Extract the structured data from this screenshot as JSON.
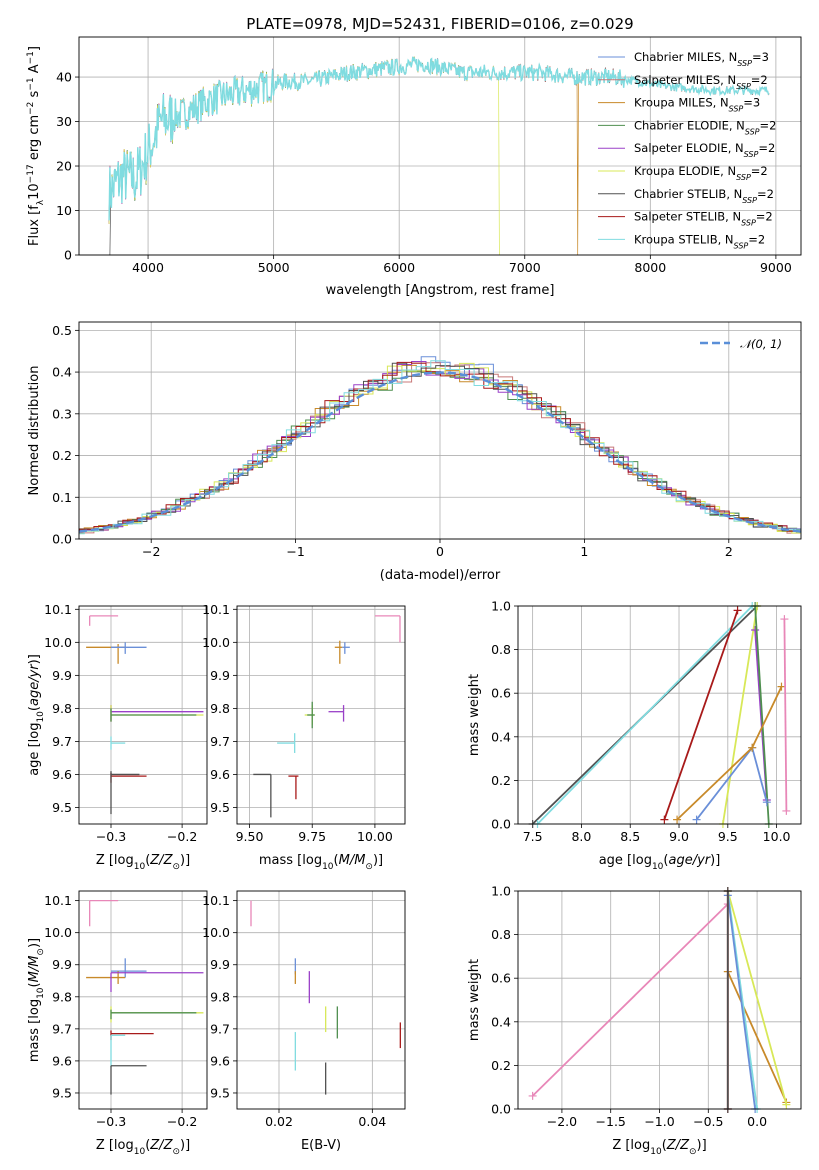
{
  "title": "PLATE=0978, MJD=52431, FIBERID=0106, z=0.029",
  "colors": {
    "Chabrier MILES": "#6a8fd8",
    "Salpeter MILES": "#c87878",
    "Kroupa MILES": "#c88a2a",
    "Chabrier ELODIE": "#4f8f4f",
    "Salpeter ELODIE": "#9a40c8",
    "Kroupa ELODIE": "#d8e858",
    "Chabrier STELIB": "#505050",
    "Salpeter STELIB": "#a81a1a",
    "Kroupa STELIB": "#80dce0",
    "gauss": "#5a8fd8",
    "pink": "#e887b8",
    "orange": "#e07a30",
    "purple": "#9a40c8",
    "lime": "#c8e850"
  },
  "chart_data": [
    {
      "id": "spectrum",
      "type": "line",
      "xlabel": "wavelength [Angstrom, rest frame]",
      "ylabel": "Flux [f_λ10^-17 erg cm^-2 s^-1 A^-1]",
      "xlim": [
        3450,
        9200
      ],
      "ylim": [
        0,
        49
      ],
      "xticks": [
        4000,
        5000,
        6000,
        7000,
        8000,
        9000
      ],
      "yticks": [
        0,
        10,
        20,
        30,
        40
      ],
      "legend_position": "top-right",
      "legend": [
        {
          "model": "Chabrier MILES",
          "nssp": "3"
        },
        {
          "model": "Salpeter MILES",
          "nssp": "2"
        },
        {
          "model": "Kroupa MILES",
          "nssp": "3"
        },
        {
          "model": "Chabrier ELODIE",
          "nssp": "2"
        },
        {
          "model": "Salpeter ELODIE",
          "nssp": "2"
        },
        {
          "model": "Kroupa ELODIE",
          "nssp": "2"
        },
        {
          "model": "Chabrier STELIB",
          "nssp": "2"
        },
        {
          "model": "Salpeter STELIB",
          "nssp": "2"
        },
        {
          "model": "Kroupa STELIB",
          "nssp": "2"
        }
      ],
      "continuum": [
        [
          3690,
          14
        ],
        [
          3800,
          18
        ],
        [
          3900,
          17
        ],
        [
          4000,
          23
        ],
        [
          4100,
          30
        ],
        [
          4300,
          32
        ],
        [
          4500,
          35
        ],
        [
          4800,
          37
        ],
        [
          5100,
          39
        ],
        [
          5300,
          39
        ],
        [
          5600,
          41
        ],
        [
          5900,
          42
        ],
        [
          6200,
          43
        ],
        [
          6500,
          41
        ],
        [
          6800,
          41
        ],
        [
          7100,
          41
        ],
        [
          7400,
          40
        ],
        [
          7700,
          40
        ],
        [
          8100,
          38
        ],
        [
          8500,
          37
        ],
        [
          8900,
          37
        ]
      ]
    },
    {
      "id": "residuals",
      "type": "histogram",
      "xlabel": "(data-model)/error",
      "ylabel": "Normed distribution",
      "xlim": [
        -2.5,
        2.5
      ],
      "ylim": [
        0,
        0.52
      ],
      "xticks": [
        -2,
        -1,
        0,
        1,
        2
      ],
      "yticks": [
        0.0,
        0.1,
        0.2,
        0.3,
        0.4,
        0.5
      ],
      "legend_position": "top-right",
      "legend_label": "N(0,1)"
    },
    {
      "id": "age_vs_Z",
      "type": "errorbar",
      "xlabel": "Z [log10(Z/Z⊙)]",
      "ylabel": "age [log10(age/yr)]",
      "xlim": [
        -0.345,
        -0.165
      ],
      "ylim": [
        9.45,
        10.11
      ],
      "xticks": [
        -0.3,
        -0.2
      ],
      "yticks": [
        9.5,
        9.6,
        9.7,
        9.8,
        9.9,
        10.0,
        10.1
      ],
      "points": [
        {
          "c": "pink",
          "x": -0.33,
          "y": 10.08,
          "xe": [
            0,
            0.04
          ],
          "ye": [
            0.03,
            0
          ]
        },
        {
          "c": "Kroupa MILES",
          "x": -0.29,
          "y": 9.985,
          "xe": [
            0.045,
            0.01
          ],
          "ye": [
            0.05,
            0.01
          ]
        },
        {
          "c": "Chabrier MILES",
          "x": -0.28,
          "y": 9.985,
          "xe": [
            0.02,
            0.03
          ],
          "ye": [
            0.02,
            0.015
          ]
        },
        {
          "c": "Salpeter ELODIE",
          "x": -0.3,
          "y": 9.79,
          "xe": [
            0,
            0.13
          ],
          "ye": [
            0.03,
            0.02
          ]
        },
        {
          "c": "Kroupa ELODIE",
          "x": -0.3,
          "y": 9.78,
          "xe": [
            0,
            0.13
          ],
          "ye": [
            0.02,
            0.03
          ]
        },
        {
          "c": "Chabrier ELODIE",
          "x": -0.3,
          "y": 9.78,
          "xe": [
            0,
            0.12
          ],
          "ye": [
            0.02,
            0.02
          ]
        },
        {
          "c": "Kroupa STELIB",
          "x": -0.3,
          "y": 9.695,
          "xe": [
            0,
            0.02
          ],
          "ye": [
            0.02,
            0.02
          ]
        },
        {
          "c": "Salpeter STELIB",
          "x": -0.3,
          "y": 9.595,
          "xe": [
            0,
            0.05
          ],
          "ye": [
            0.02,
            0.01
          ]
        },
        {
          "c": "Chabrier STELIB",
          "x": -0.3,
          "y": 9.6,
          "xe": [
            0,
            0.04
          ],
          "ye": [
            0.12,
            0.01
          ]
        }
      ]
    },
    {
      "id": "age_vs_mass",
      "type": "errorbar",
      "xlabel": "mass [log10(M/M⊙)]",
      "ylabel": "",
      "xlim": [
        9.45,
        10.12
      ],
      "ylim": [
        9.45,
        10.11
      ],
      "xticks": [
        9.5,
        9.75,
        10.0
      ],
      "yticks": [
        9.5,
        9.6,
        9.7,
        9.8,
        9.9,
        10.0,
        10.1
      ],
      "points": [
        {
          "c": "pink",
          "x": 10.1,
          "y": 10.08,
          "xe": [
            0.1,
            0
          ],
          "ye": [
            0.08,
            0
          ]
        },
        {
          "c": "Kroupa MILES",
          "x": 9.86,
          "y": 9.985,
          "xe": [
            0.02,
            0.01
          ],
          "ye": [
            0.05,
            0.02
          ]
        },
        {
          "c": "Chabrier MILES",
          "x": 9.88,
          "y": 9.985,
          "xe": [
            0.01,
            0.02
          ],
          "ye": [
            0.02,
            0.015
          ]
        },
        {
          "c": "Salpeter ELODIE",
          "x": 9.875,
          "y": 9.79,
          "xe": [
            0.06,
            0
          ],
          "ye": [
            0.03,
            0.02
          ]
        },
        {
          "c": "Kroupa ELODIE",
          "x": 9.75,
          "y": 9.78,
          "xe": [
            0.03,
            0.01
          ],
          "ye": [
            0.03,
            0.03
          ]
        },
        {
          "c": "Chabrier ELODIE",
          "x": 9.75,
          "y": 9.78,
          "xe": [
            0.02,
            0.01
          ],
          "ye": [
            0.04,
            0.04
          ]
        },
        {
          "c": "Kroupa STELIB",
          "x": 9.68,
          "y": 9.695,
          "xe": [
            0.07,
            0
          ],
          "ye": [
            0.03,
            0.03
          ]
        },
        {
          "c": "Salpeter STELIB",
          "x": 9.685,
          "y": 9.595,
          "xe": [
            0.03,
            0.01
          ],
          "ye": [
            0.07,
            0
          ]
        },
        {
          "c": "Chabrier STELIB",
          "x": 9.585,
          "y": 9.6,
          "xe": [
            0.07,
            0
          ],
          "ye": [
            0.13,
            0
          ]
        }
      ]
    },
    {
      "id": "mass_weight_vs_age",
      "type": "line",
      "xlabel": "age [log10(age/yr)]",
      "ylabel": "mass weight",
      "xlim": [
        7.35,
        10.25
      ],
      "ylim": [
        0,
        1
      ],
      "xticks": [
        7.5,
        8.0,
        8.5,
        9.0,
        9.5,
        10.0
      ],
      "yticks": [
        0.0,
        0.2,
        0.4,
        0.6,
        0.8,
        1.0
      ],
      "lines": [
        {
          "c": "Chabrier STELIB",
          "x": [
            7.5,
            9.8
          ],
          "y": [
            0.0,
            1.0
          ]
        },
        {
          "c": "Kroupa STELIB",
          "x": [
            7.55,
            9.75
          ],
          "y": [
            0.0,
            1.0
          ]
        },
        {
          "c": "Salpeter STELIB",
          "x": [
            8.85,
            9.6
          ],
          "y": [
            0.02,
            0.98
          ]
        },
        {
          "c": "Kroupa ELODIE",
          "x": [
            9.45,
            9.8
          ],
          "y": [
            0.0,
            1.0
          ]
        },
        {
          "c": "Salpeter ELODIE",
          "x": [
            9.9,
            9.78
          ],
          "y": [
            0.11,
            0.89
          ]
        },
        {
          "c": "Chabrier ELODIE",
          "x": [
            9.92,
            9.78
          ],
          "y": [
            0.0,
            1.0
          ]
        },
        {
          "c": "Chabrier MILES",
          "x": [
            9.18,
            9.75,
            9.9
          ],
          "y": [
            0.02,
            0.35,
            0.1
          ]
        },
        {
          "c": "Kroupa MILES",
          "x": [
            8.98,
            9.75,
            10.05
          ],
          "y": [
            0.02,
            0.35,
            0.63
          ]
        },
        {
          "c": "pink",
          "x": [
            10.1,
            10.08
          ],
          "y": [
            0.06,
            0.94
          ]
        }
      ]
    },
    {
      "id": "mass_vs_Z",
      "type": "errorbar",
      "xlabel": "Z [log10(Z/Z⊙)]",
      "ylabel": "mass [log10(M/M⊙)]",
      "xlim": [
        -0.345,
        -0.165
      ],
      "ylim": [
        9.45,
        10.13
      ],
      "xticks": [
        -0.3,
        -0.2
      ],
      "yticks": [
        9.5,
        9.6,
        9.7,
        9.8,
        9.9,
        10.0,
        10.1
      ],
      "points": [
        {
          "c": "pink",
          "x": -0.33,
          "y": 10.1,
          "xe": [
            0,
            0.04
          ],
          "ye": [
            0.08,
            0
          ]
        },
        {
          "c": "Chabrier MILES",
          "x": -0.28,
          "y": 9.88,
          "xe": [
            0.02,
            0.03
          ],
          "ye": [
            0.02,
            0.04
          ]
        },
        {
          "c": "Kroupa MILES",
          "x": -0.29,
          "y": 9.86,
          "xe": [
            0.045,
            0.01
          ],
          "ye": [
            0.02,
            0.02
          ]
        },
        {
          "c": "Salpeter ELODIE",
          "x": -0.3,
          "y": 9.875,
          "xe": [
            0,
            0.13
          ],
          "ye": [
            0.06,
            0
          ]
        },
        {
          "c": "Kroupa ELODIE",
          "x": -0.3,
          "y": 9.75,
          "xe": [
            0,
            0.13
          ],
          "ye": [
            0.03,
            0.02
          ]
        },
        {
          "c": "Chabrier ELODIE",
          "x": -0.3,
          "y": 9.75,
          "xe": [
            0,
            0.12
          ],
          "ye": [
            0.02,
            0.01
          ]
        },
        {
          "c": "Salpeter STELIB",
          "x": -0.3,
          "y": 9.685,
          "xe": [
            0,
            0.06
          ],
          "ye": [
            0.02,
            0.01
          ]
        },
        {
          "c": "Kroupa STELIB",
          "x": -0.3,
          "y": 9.68,
          "xe": [
            0,
            0.02
          ],
          "ye": [
            0.1,
            0
          ]
        },
        {
          "c": "Chabrier STELIB",
          "x": -0.3,
          "y": 9.585,
          "xe": [
            0,
            0.05
          ],
          "ye": [
            0.09,
            0
          ]
        }
      ]
    },
    {
      "id": "mass_vs_ebv",
      "type": "errorbar",
      "xlabel": "E(B-V)",
      "ylabel": "",
      "xlim": [
        0.011,
        0.047
      ],
      "ylim": [
        9.45,
        10.13
      ],
      "xticks": [
        0.02,
        0.04
      ],
      "yticks": [
        9.5,
        9.6,
        9.7,
        9.8,
        9.9,
        10.0,
        10.1
      ],
      "points": [
        {
          "c": "pink",
          "x": 0.014,
          "y": 10.1,
          "ye": [
            0.08,
            0
          ]
        },
        {
          "c": "Chabrier MILES",
          "x": 0.0235,
          "y": 9.88,
          "ye": [
            0.01,
            0.04
          ]
        },
        {
          "c": "Kroupa MILES",
          "x": 0.0235,
          "y": 9.86,
          "ye": [
            0.02,
            0.02
          ]
        },
        {
          "c": "Salpeter ELODIE",
          "x": 0.0265,
          "y": 9.83,
          "ye": [
            0.05,
            0.05
          ]
        },
        {
          "c": "Kroupa ELODIE",
          "x": 0.03,
          "y": 9.72,
          "ye": [
            0.03,
            0.05
          ]
        },
        {
          "c": "Chabrier ELODIE",
          "x": 0.0325,
          "y": 9.72,
          "ye": [
            0.05,
            0.05
          ]
        },
        {
          "c": "Kroupa STELIB",
          "x": 0.0235,
          "y": 9.63,
          "ye": [
            0.06,
            0.06
          ]
        },
        {
          "c": "Chabrier STELIB",
          "x": 0.03,
          "y": 9.545,
          "ye": [
            0.05,
            0.05
          ]
        },
        {
          "c": "Salpeter STELIB",
          "x": 0.046,
          "y": 9.68,
          "ye": [
            0.04,
            0.04
          ]
        }
      ]
    },
    {
      "id": "mass_weight_vs_Z",
      "type": "line",
      "xlabel": "Z [log10(Z/Z⊙)]",
      "ylabel": "mass weight",
      "xlim": [
        -2.45,
        0.45
      ],
      "ylim": [
        0,
        1
      ],
      "xticks": [
        -2.0,
        -1.5,
        -1.0,
        -0.5,
        0.0
      ],
      "yticks": [
        0.0,
        0.2,
        0.4,
        0.6,
        0.8,
        1.0
      ],
      "lines": [
        {
          "c": "pink",
          "x": [
            -2.3,
            -0.3
          ],
          "y": [
            0.06,
            0.94
          ]
        },
        {
          "c": "Kroupa MILES",
          "x": [
            -0.3,
            0.3
          ],
          "y": [
            0.63,
            0.03
          ]
        },
        {
          "c": "Kroupa ELODIE",
          "x": [
            -0.3,
            0.3
          ],
          "y": [
            1.0,
            0.02
          ]
        },
        {
          "c": "Kroupa STELIB",
          "x": [
            -0.3,
            0.0
          ],
          "y": [
            1.0,
            0.0
          ]
        },
        {
          "c": "Chabrier MILES",
          "x": [
            -0.3,
            -0.02
          ],
          "y": [
            0.98,
            0.0
          ]
        },
        {
          "c": "Salpeter STELIB",
          "x": [
            -0.3,
            -0.3
          ],
          "y": [
            0.0,
            1.0
          ]
        },
        {
          "c": "Chabrier STELIB",
          "x": [
            -0.3,
            -0.3
          ],
          "y": [
            0.0,
            1.0
          ]
        }
      ]
    }
  ]
}
